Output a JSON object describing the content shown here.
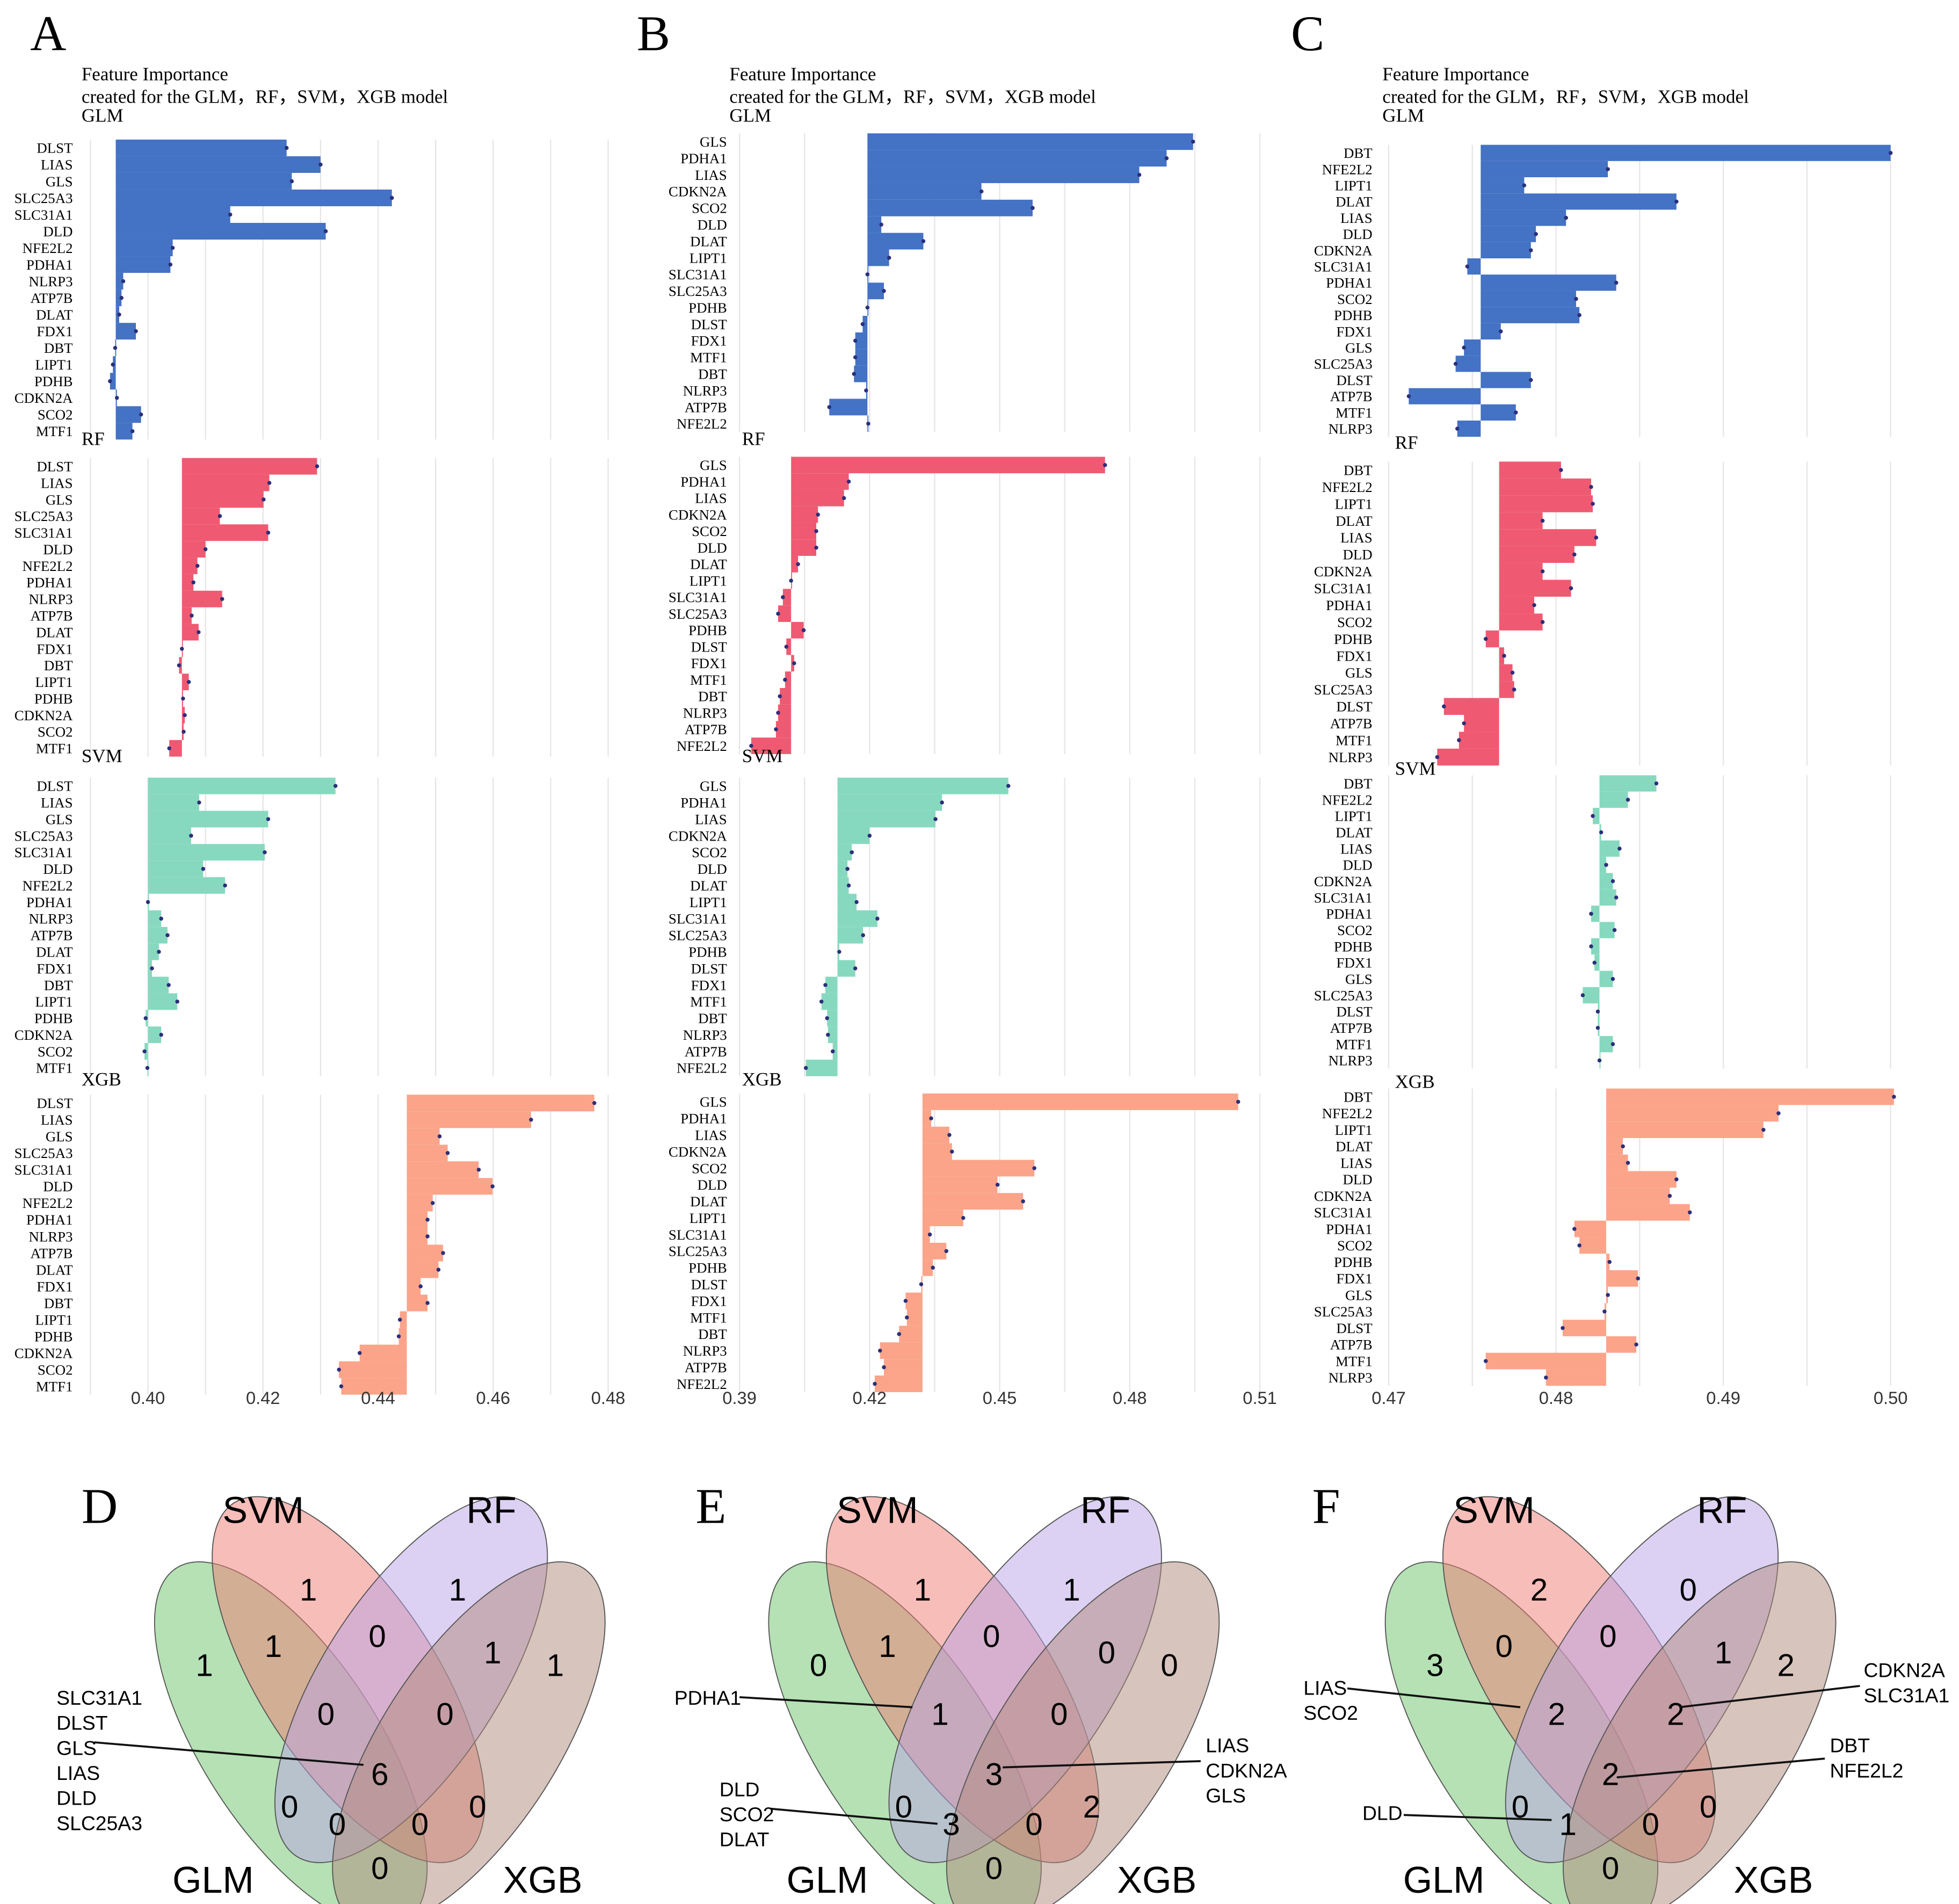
{
  "panel_letters": [
    "A",
    "B",
    "C",
    "D",
    "E",
    "F"
  ],
  "chart_data": [
    {
      "type": "bar",
      "panel": "A",
      "title_lines": [
        "Feature Importance",
        "created for the GLM，RF，SVM，XGB model"
      ],
      "xlim": [
        0.39,
        0.483
      ],
      "x_ticks": [
        "0.40",
        "0.42",
        "0.44",
        "0.46",
        "0.48"
      ],
      "x_tick_values": [
        0.4,
        0.42,
        0.44,
        0.46,
        0.48
      ],
      "grid": true,
      "genes": [
        "DLST",
        "LIAS",
        "GLS",
        "SLC25A3",
        "SLC31A1",
        "DLD",
        "NFE2L2",
        "PDHA1",
        "NLRP3",
        "ATP7B",
        "DLAT",
        "FDX1",
        "DBT",
        "LIPT1",
        "PDHB",
        "CDKN2A",
        "SCO2",
        "MTF1"
      ],
      "models": [
        {
          "name": "GLM",
          "color": "#4472c4",
          "baseline": 0.3944,
          "values": [
            0.4241,
            0.43,
            0.425,
            0.4424,
            0.4143,
            0.4309,
            0.4043,
            0.4039,
            0.3957,
            0.3954,
            0.395,
            0.3979,
            0.3943,
            0.3939,
            0.3934,
            0.3946,
            0.3988,
            0.3973
          ]
        },
        {
          "name": "RF",
          "color": "#ef5a72",
          "baseline": 0.4059,
          "values": [
            0.4294,
            0.4211,
            0.4201,
            0.4125,
            0.4209,
            0.41,
            0.4086,
            0.4079,
            0.4129,
            0.4076,
            0.4088,
            0.4059,
            0.4054,
            0.4071,
            0.4061,
            0.4064,
            0.4062,
            0.4037
          ]
        },
        {
          "name": "SVM",
          "color": "#86d9bf",
          "baseline": 0.4,
          "values": [
            0.4326,
            0.4089,
            0.4209,
            0.4075,
            0.4203,
            0.4096,
            0.4134,
            0.4,
            0.4023,
            0.4034,
            0.4019,
            0.4007,
            0.4036,
            0.4051,
            0.3996,
            0.4023,
            0.3994,
            0.3999
          ]
        },
        {
          "name": "XGB",
          "color": "#fba48a",
          "baseline": 0.445,
          "values": [
            0.4776,
            0.4666,
            0.4507,
            0.4521,
            0.4575,
            0.4599,
            0.4495,
            0.4486,
            0.4486,
            0.4513,
            0.4505,
            0.4474,
            0.4486,
            0.4438,
            0.4436,
            0.4368,
            0.4332,
            0.4336
          ]
        }
      ]
    },
    {
      "type": "bar",
      "panel": "B",
      "title_lines": [
        "Feature Importance",
        "created for the GLM，RF，SVM，XGB model"
      ],
      "xlim": [
        0.39,
        0.514
      ],
      "x_ticks": [
        "0.39",
        "0.42",
        "0.45",
        "0.48",
        "0.51"
      ],
      "x_tick_values": [
        0.39,
        0.42,
        0.45,
        0.48,
        0.51
      ],
      "grid": true,
      "genes": [
        "GLS",
        "PDHA1",
        "LIAS",
        "CDKN2A",
        "SCO2",
        "DLD",
        "DLAT",
        "LIPT1",
        "SLC31A1",
        "SLC25A3",
        "PDHB",
        "DLST",
        "FDX1",
        "MTF1",
        "DBT",
        "NLRP3",
        "ATP7B",
        "NFE2L2"
      ],
      "models": [
        {
          "name": "GLM",
          "color": "#4472c4",
          "baseline": 0.4195,
          "values": [
            0.4946,
            0.4885,
            0.4822,
            0.4458,
            0.4576,
            0.4227,
            0.4324,
            0.4245,
            0.4195,
            0.4233,
            0.4195,
            0.4184,
            0.4167,
            0.4167,
            0.4164,
            0.4192,
            0.4107,
            0.4197
          ]
        },
        {
          "name": "RF",
          "color": "#ef5a72",
          "baseline": 0.4019,
          "values": [
            0.4743,
            0.4152,
            0.4141,
            0.4081,
            0.4077,
            0.4077,
            0.4035,
            0.4019,
            0.4,
            0.3989,
            0.4048,
            0.4008,
            0.4026,
            0.4005,
            0.3993,
            0.3989,
            0.3984,
            0.3927
          ]
        },
        {
          "name": "SVM",
          "color": "#86d9bf",
          "baseline": 0.4126,
          "values": [
            0.452,
            0.4367,
            0.4352,
            0.42,
            0.4159,
            0.4149,
            0.4152,
            0.417,
            0.4218,
            0.4185,
            0.413,
            0.4167,
            0.4098,
            0.4089,
            0.4102,
            0.4104,
            0.4115,
            0.4053
          ]
        },
        {
          "name": "XGB",
          "color": "#fba48a",
          "baseline": 0.4322,
          "values": [
            0.505,
            0.4342,
            0.4384,
            0.439,
            0.458,
            0.4495,
            0.4554,
            0.4416,
            0.4339,
            0.4377,
            0.4346,
            0.4319,
            0.4283,
            0.4286,
            0.4268,
            0.4224,
            0.4233,
            0.4212
          ]
        }
      ]
    },
    {
      "type": "bar",
      "panel": "C",
      "title_lines": [
        "Feature Importance",
        "created for the GLM，RF，SVM，XGB model"
      ],
      "xlim": [
        0.47,
        0.5009
      ],
      "x_ticks": [
        "0.47",
        "0.48",
        "0.49",
        "0.50"
      ],
      "x_tick_values": [
        0.47,
        0.48,
        0.49,
        0.5
      ],
      "grid": true,
      "genes": [
        "DBT",
        "NFE2L2",
        "LIPT1",
        "DLAT",
        "LIAS",
        "DLD",
        "CDKN2A",
        "SLC31A1",
        "PDHA1",
        "SCO2",
        "PDHB",
        "FDX1",
        "GLS",
        "SLC25A3",
        "DLST",
        "ATP7B",
        "MTF1",
        "NLRP3"
      ],
      "models": [
        {
          "name": "GLM",
          "color": "#4472c4",
          "baseline": 0.4755,
          "values": [
            0.5,
            0.4831,
            0.4781,
            0.4872,
            0.4806,
            0.4788,
            0.4785,
            0.4747,
            0.4836,
            0.4812,
            0.4814,
            0.4767,
            0.4745,
            0.474,
            0.4785,
            0.4712,
            0.4776,
            0.4741
          ]
        },
        {
          "name": "RF",
          "color": "#ef5a72",
          "baseline": 0.4766,
          "values": [
            0.4803,
            0.4821,
            0.4822,
            0.4792,
            0.4824,
            0.4811,
            0.4792,
            0.4809,
            0.4787,
            0.4792,
            0.4758,
            0.4769,
            0.4774,
            0.4775,
            0.4733,
            0.4745,
            0.4742,
            0.4729
          ]
        },
        {
          "name": "SVM",
          "color": "#86d9bf",
          "baseline": 0.4826,
          "values": [
            0.486,
            0.4843,
            0.4822,
            0.4827,
            0.4838,
            0.483,
            0.4834,
            0.4836,
            0.4821,
            0.4835,
            0.4821,
            0.4823,
            0.4834,
            0.4816,
            0.4825,
            0.4825,
            0.4834,
            0.4826
          ]
        },
        {
          "name": "XGB",
          "color": "#fba48a",
          "baseline": 0.483,
          "values": [
            0.5002,
            0.4933,
            0.4924,
            0.484,
            0.4843,
            0.4872,
            0.4868,
            0.488,
            0.4811,
            0.4814,
            0.4832,
            0.4849,
            0.4831,
            0.4829,
            0.4804,
            0.4848,
            0.4758,
            0.4794
          ]
        }
      ]
    }
  ],
  "venn_set_names": [
    "GLM",
    "SVM",
    "RF",
    "XGB"
  ],
  "venn_colors": {
    "GLM": "#6cc46a",
    "SVM": "#ef7b74",
    "RF": "#b9a3e6",
    "XGB": "#b08a7c"
  },
  "venns": [
    {
      "panel": "D",
      "counts": {
        "GLM": 1,
        "SVM": 1,
        "RF": 1,
        "XGB": 1,
        "GLM&SVM": 1,
        "SVM&RF": 0,
        "RF&XGB": 1,
        "GLM&SVM&RF": 0,
        "SVM&RF&XGB": 0,
        "GLM&SVM&RF&XGB": 6,
        "GLM&RF": 0,
        "SVM&XGB": 0,
        "GLM&RF&XGB": 0,
        "GLM&SVM&XGB": 0,
        "GLM&XGB": 0
      },
      "annotations": [
        {
          "region": "GLM&SVM&RF&XGB",
          "genes": [
            "SLC31A1",
            "DLST",
            "GLS",
            "LIAS",
            "DLD",
            "SLC25A3"
          ]
        }
      ]
    },
    {
      "panel": "E",
      "counts": {
        "GLM": 0,
        "SVM": 1,
        "RF": 1,
        "XGB": 0,
        "GLM&SVM": 1,
        "SVM&RF": 0,
        "RF&XGB": 0,
        "GLM&SVM&RF": 1,
        "SVM&RF&XGB": 0,
        "GLM&SVM&RF&XGB": 3,
        "GLM&RF": 0,
        "SVM&XGB": 2,
        "GLM&RF&XGB": 3,
        "GLM&SVM&XGB": 0,
        "GLM&XGB": 0
      },
      "annotations": [
        {
          "region": "GLM&SVM&RF",
          "genes": [
            "PDHA1"
          ]
        },
        {
          "region": "GLM&SVM&RF&XGB",
          "genes": [
            "LIAS",
            "CDKN2A",
            "GLS"
          ]
        },
        {
          "region": "GLM&RF&XGB",
          "genes": [
            "DLD",
            "SCO2",
            "DLAT"
          ]
        }
      ]
    },
    {
      "panel": "F",
      "counts": {
        "GLM": 3,
        "SVM": 2,
        "RF": 0,
        "XGB": 2,
        "GLM&SVM": 0,
        "SVM&RF": 0,
        "RF&XGB": 1,
        "GLM&SVM&RF": 2,
        "SVM&RF&XGB": 2,
        "GLM&SVM&RF&XGB": 2,
        "GLM&RF": 0,
        "SVM&XGB": 0,
        "GLM&RF&XGB": 1,
        "GLM&SVM&XGB": 0,
        "GLM&XGB": 0
      },
      "annotations": [
        {
          "region": "GLM&SVM&RF",
          "genes": [
            "LIAS",
            "SCO2"
          ]
        },
        {
          "region": "SVM&RF&XGB",
          "genes": [
            "CDKN2A",
            "SLC31A1"
          ]
        },
        {
          "region": "GLM&SVM&RF&XGB",
          "genes": [
            "DBT",
            "NFE2L2"
          ]
        },
        {
          "region": "GLM&RF&XGB",
          "genes": [
            "DLD"
          ]
        }
      ]
    }
  ]
}
